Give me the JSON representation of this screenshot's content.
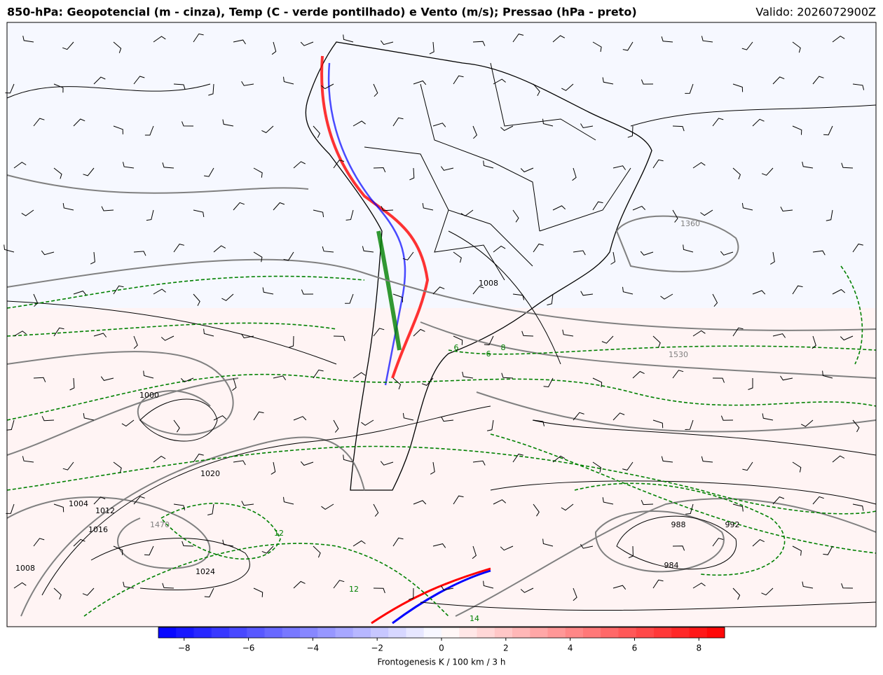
{
  "header": {
    "title": "850-hPa: Geopotencial (m - cinza), Temp (C - verde pontilhado) e Vento (m/s); Pressao (hPa - preto)",
    "valid": "Valido: 2026072900Z"
  },
  "map": {
    "contour_labels": [
      {
        "text": 1360,
        "color": "#808080"
      },
      {
        "text": 1530,
        "color": "#808080"
      },
      {
        "text": 1470,
        "color": "#808080"
      },
      {
        "text": 1000,
        "color": "#000000"
      },
      {
        "text": 1020,
        "color": "#000000"
      },
      {
        "text": 1024,
        "color": "#000000"
      },
      {
        "text": 1008,
        "color": "#000000"
      },
      {
        "text": 1004,
        "color": "#000000"
      },
      {
        "text": 1012,
        "color": "#000000"
      },
      {
        "text": 1016,
        "color": "#000000"
      },
      {
        "text": 984,
        "color": "#000000"
      },
      {
        "text": 988,
        "color": "#000000"
      },
      {
        "text": 992,
        "color": "#000000"
      },
      {
        "text": 1008,
        "color": "#000000"
      },
      {
        "text": 6,
        "color": "#008000"
      },
      {
        "text": 6,
        "color": "#008000"
      },
      {
        "text": 8,
        "color": "#008000"
      },
      {
        "text": 12,
        "color": "#008000"
      },
      {
        "text": 12,
        "color": "#008000"
      },
      {
        "text": 14,
        "color": "#008000"
      }
    ]
  },
  "colorbar": {
    "label": "Frontogenesis K / 100 km / 3 h",
    "lim": [
      -8.8,
      8.8
    ],
    "ticks": [
      {
        "value": -8,
        "label": "−8"
      },
      {
        "value": -6,
        "label": "−6"
      },
      {
        "value": -4,
        "label": "−4"
      },
      {
        "value": -2,
        "label": "−2"
      },
      0,
      2,
      4,
      6,
      8
    ],
    "colors": [
      "#0000ff",
      "#ffffff",
      "#ff0000"
    ]
  }
}
